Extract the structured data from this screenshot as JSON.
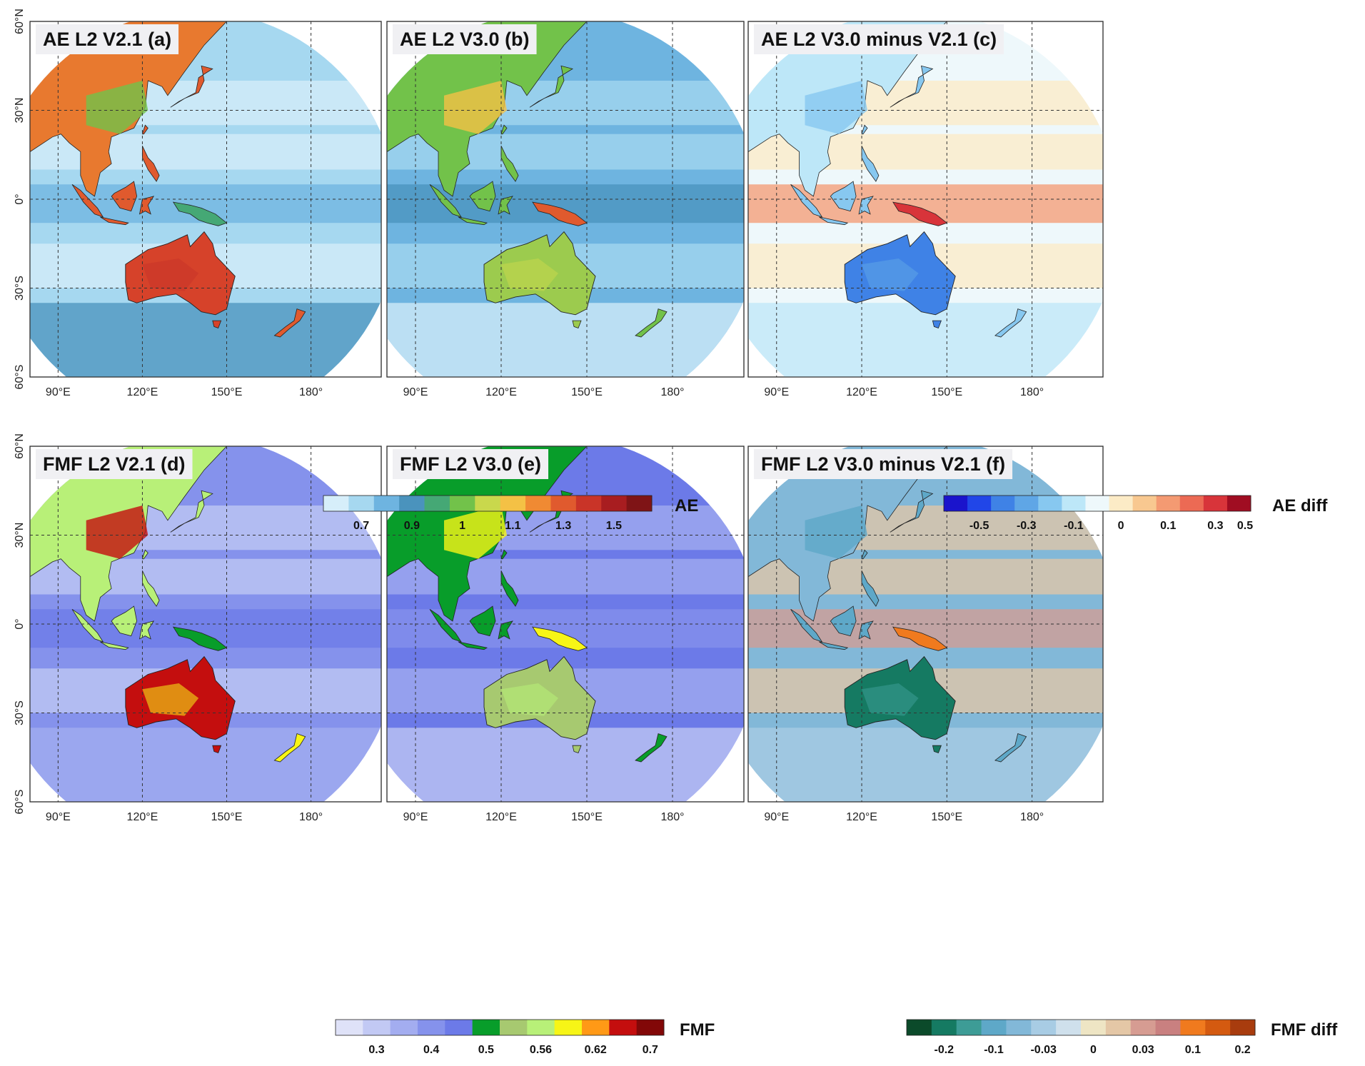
{
  "figure": {
    "panels": [
      {
        "id": "a",
        "title": "AE L2 V2.1 (a)",
        "scheme": "ae_v21"
      },
      {
        "id": "b",
        "title": "AE L2 V3.0 (b)",
        "scheme": "ae_v30"
      },
      {
        "id": "c",
        "title": "AE L2 V3.0 minus V2.1 (c)",
        "scheme": "ae_diff"
      },
      {
        "id": "d",
        "title": "FMF L2 V2.1 (d)",
        "scheme": "fmf_v21"
      },
      {
        "id": "e",
        "title": "FMF L2 V3.0 (e)",
        "scheme": "fmf_v30"
      },
      {
        "id": "f",
        "title": "FMF L2 V3.0 minus V2.1 (f)",
        "scheme": "fmf_diff"
      }
    ],
    "lat_labels": [
      "60°N",
      "30°N",
      "0°",
      "30°S",
      "60°S"
    ],
    "lon_labels": [
      "90°E",
      "120°E",
      "150°E",
      "180°"
    ],
    "colorbars": [
      {
        "id": "ae",
        "label": "AE",
        "colors": [
          "#d6eefa",
          "#a6d8f0",
          "#6eb4e0",
          "#4a93bd",
          "#45a875",
          "#72c24a",
          "#c9d84c",
          "#f4c145",
          "#f08a33",
          "#e05a2e",
          "#c93428",
          "#a81d20",
          "#7f1416"
        ],
        "ticks": [
          "0.7",
          "0.9",
          "1",
          "1.1",
          "1.3",
          "1.5"
        ]
      },
      {
        "id": "ae_diff",
        "label": "AE diff",
        "colors": [
          "#1a14cc",
          "#2146e8",
          "#3f82e6",
          "#5fa6e6",
          "#87c8f0",
          "#bde7f8",
          "#eef8fb",
          "#fcebc6",
          "#f8c890",
          "#f49a72",
          "#ec6a54",
          "#d8343a",
          "#a00d22"
        ],
        "ticks": [
          "-0.5",
          "-0.3",
          "-0.1",
          "0",
          "0.1",
          "0.3",
          "0.5"
        ]
      },
      {
        "id": "fmf",
        "label": "FMF",
        "colors": [
          "#dfe2f8",
          "#c2c9f4",
          "#a3adf0",
          "#8592ec",
          "#6c7ae8",
          "#089d2a",
          "#a7c970",
          "#b8f078",
          "#f7f516",
          "#ff9916",
          "#c40e0e",
          "#820808"
        ],
        "ticks": [
          "0.3",
          "0.4",
          "0.5",
          "0.56",
          "0.62",
          "0.7"
        ]
      },
      {
        "id": "fmf_diff",
        "label": "FMF diff",
        "colors": [
          "#0b4a2a",
          "#157a62",
          "#3d9c96",
          "#5ea8c8",
          "#82b8d8",
          "#a8cce4",
          "#cfe0ec",
          "#eee5c4",
          "#e4c7a6",
          "#d69c92",
          "#c98080",
          "#f07a1e",
          "#d45a10",
          "#a83c0e"
        ],
        "ticks": [
          "-0.2",
          "-0.1",
          "-0.03",
          "0",
          "0.03",
          "0.1",
          "0.2"
        ]
      }
    ]
  }
}
